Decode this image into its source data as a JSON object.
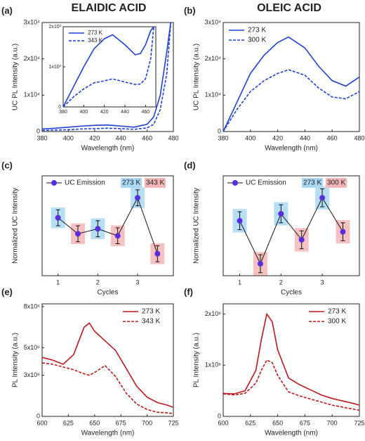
{
  "headers": [
    "ELAIDIC ACID",
    "OLEIC ACID"
  ],
  "chart_data": [
    {
      "type": "line",
      "panel": "(a)",
      "xlabel": "Wavelength (nm)",
      "ylabel": "UC PL Intensity (a.u.)",
      "xlim": [
        380,
        480
      ],
      "xticks": [
        380,
        400,
        420,
        440,
        460,
        480
      ],
      "ylim": [
        0,
        30000
      ],
      "yticks": [
        0,
        {
          "value": 10000,
          "label": "1x10⁴"
        },
        {
          "value": 20000,
          "label": "2x10⁴"
        },
        {
          "value": 30000,
          "label": "3x10⁴"
        }
      ],
      "x": [
        380,
        390,
        400,
        410,
        420,
        430,
        440,
        450,
        460,
        465,
        470,
        475,
        478
      ],
      "series": [
        {
          "name": "273 K",
          "color": "#1f3fd6",
          "dash": "solid",
          "values": [
            700,
            900,
            1200,
            1500,
            1700,
            1800,
            1500,
            1200,
            2000,
            4000,
            10000,
            22000,
            30000
          ]
        },
        {
          "name": "343 K",
          "color": "#1f3fd6",
          "dash": "dashed",
          "values": [
            300,
            400,
            500,
            700,
            800,
            900,
            800,
            600,
            1000,
            2000,
            6000,
            16000,
            30000
          ]
        }
      ],
      "inset": {
        "type": "line",
        "legend": "top-left",
        "xlim": [
          380,
          470
        ],
        "xticks": [
          380,
          400,
          420,
          440,
          460
        ],
        "ylim": [
          0,
          2000
        ],
        "yticks": [
          0,
          {
            "value": 1000,
            "label": "1x10³"
          },
          {
            "value": 2000,
            "label": "2x10³"
          }
        ],
        "x": [
          380,
          390,
          400,
          410,
          420,
          428,
          440,
          450,
          455,
          460,
          465,
          468
        ],
        "series": [
          {
            "name": "273 K",
            "color": "#1f3fd6",
            "dash": "solid",
            "values": [
              0,
              500,
              1000,
              1450,
              1700,
              1800,
              1550,
              1300,
              1330,
              1550,
              1900,
              2000
            ]
          },
          {
            "name": "343 K",
            "color": "#1f3fd6",
            "dash": "dashed",
            "values": [
              0,
              250,
              450,
              600,
              650,
              700,
              620,
              560,
              570,
              700,
              1200,
              2000
            ]
          }
        ]
      }
    },
    {
      "type": "line",
      "panel": "(b)",
      "xlabel": "Wavelength (nm)",
      "ylabel": "UC PL Intensity (a.u.)",
      "legend": "top-left",
      "xlim": [
        380,
        480
      ],
      "xticks": [
        380,
        400,
        420,
        440,
        460,
        480
      ],
      "ylim": [
        0,
        30000
      ],
      "yticks": [
        0,
        {
          "value": 10000,
          "label": "1x10⁴"
        },
        {
          "value": 20000,
          "label": "2x10⁴"
        },
        {
          "value": 30000,
          "label": "3x10⁴"
        }
      ],
      "x": [
        380,
        390,
        400,
        410,
        420,
        428,
        440,
        450,
        460,
        470,
        480
      ],
      "series": [
        {
          "name": "273 K",
          "color": "#1f3fd6",
          "dash": "solid",
          "values": [
            0,
            8000,
            16000,
            21000,
            24500,
            26000,
            23000,
            18000,
            14000,
            12500,
            15000
          ]
        },
        {
          "name": "300 K",
          "color": "#1f3fd6",
          "dash": "dashed",
          "values": [
            0,
            6000,
            11000,
            14000,
            16000,
            17000,
            15500,
            12000,
            9500,
            9000,
            11000
          ]
        }
      ]
    },
    {
      "type": "errorline",
      "panel": "(c)",
      "xlabel": "Cycles",
      "ylabel": "Normalized UC Intensity",
      "xlim": [
        0.6,
        3.9
      ],
      "xticks": [
        1,
        2,
        3
      ],
      "ylim": [
        0,
        1
      ],
      "x": [
        1,
        1.5,
        2,
        2.5,
        3,
        3.5
      ],
      "series": [
        {
          "name": "UC Emission",
          "color": "#5a2ee0",
          "values": [
            0.58,
            0.42,
            0.47,
            0.4,
            0.78,
            0.22
          ],
          "errors": [
            0.08,
            0.08,
            0.08,
            0.08,
            0.08,
            0.08
          ]
        }
      ],
      "groups": [
        {
          "name": "273 K",
          "color": "#a9d8f2"
        },
        {
          "name": "343 K",
          "color": "#f4b6b6"
        }
      ],
      "point_group": [
        0,
        1,
        0,
        1,
        0,
        1
      ]
    },
    {
      "type": "errorline",
      "panel": "(d)",
      "xlabel": "Cycles",
      "ylabel": "Normalized UC Intensity",
      "xlim": [
        0.6,
        3.9
      ],
      "xticks": [
        1,
        2,
        3
      ],
      "ylim": [
        0,
        1
      ],
      "x": [
        1,
        1.5,
        2,
        2.5,
        3,
        3.5
      ],
      "series": [
        {
          "name": "UC Emission",
          "color": "#5a2ee0",
          "values": [
            0.55,
            0.12,
            0.62,
            0.36,
            0.78,
            0.44
          ],
          "errors": [
            0.09,
            0.09,
            0.09,
            0.09,
            0.09,
            0.09
          ]
        }
      ],
      "groups": [
        {
          "name": "273 K",
          "color": "#a9d8f2"
        },
        {
          "name": "300 K",
          "color": "#f4b6b6"
        }
      ],
      "point_group": [
        0,
        1,
        0,
        1,
        0,
        1
      ]
    },
    {
      "type": "line",
      "panel": "(e)",
      "xlabel": "Wavelength (nm)",
      "ylabel": "PL Intensity (a.u.)",
      "legend": "top-right",
      "xlim": [
        600,
        725
      ],
      "xticks": [
        600,
        625,
        650,
        675,
        700,
        725
      ],
      "ylim": [
        0,
        8200000
      ],
      "yticks": [
        0,
        {
          "value": 3000000,
          "label": "3x10⁶"
        },
        {
          "value": 5000000,
          "label": "5x10⁶"
        },
        {
          "value": 8000000,
          "label": "8x10⁶"
        }
      ],
      "x": [
        600,
        610,
        620,
        630,
        640,
        645,
        650,
        660,
        670,
        680,
        690,
        700,
        710,
        720,
        725
      ],
      "series": [
        {
          "name": "273 K",
          "color": "#c0171c",
          "dash": "solid",
          "values": [
            4300000,
            4100000,
            3800000,
            4500000,
            6500000,
            6800000,
            6200000,
            5500000,
            4800000,
            3500000,
            2200000,
            1400000,
            1000000,
            800000,
            650000
          ]
        },
        {
          "name": "343 K",
          "color": "#c0171c",
          "dash": "dashed",
          "values": [
            3900000,
            3800000,
            3600000,
            3400000,
            3100000,
            3000000,
            3200000,
            3700000,
            2900000,
            1700000,
            900000,
            500000,
            300000,
            250000,
            200000
          ]
        }
      ]
    },
    {
      "type": "line",
      "panel": "(f)",
      "xlabel": "Wavelength (nm)",
      "ylabel": "PL Intensity (a.u.)",
      "legend": "top-right",
      "xlim": [
        600,
        725
      ],
      "xticks": [
        600,
        625,
        650,
        675,
        700,
        725
      ],
      "ylim": [
        0,
        2200000
      ],
      "yticks": [
        0,
        {
          "value": 1000000,
          "label": "1x10⁶"
        },
        {
          "value": 2000000,
          "label": "2x10⁶"
        }
      ],
      "x": [
        600,
        610,
        620,
        630,
        635,
        640,
        645,
        650,
        660,
        670,
        680,
        690,
        700,
        710,
        720,
        725
      ],
      "series": [
        {
          "name": "273 K",
          "color": "#c0171c",
          "dash": "solid",
          "values": [
            450000,
            440000,
            500000,
            900000,
            1500000,
            2000000,
            1850000,
            1300000,
            750000,
            620000,
            520000,
            420000,
            350000,
            300000,
            250000,
            220000
          ]
        },
        {
          "name": "300 K",
          "color": "#c0171c",
          "dash": "dashed",
          "values": [
            440000,
            420000,
            450000,
            650000,
            900000,
            1100000,
            1050000,
            800000,
            480000,
            400000,
            340000,
            280000,
            220000,
            180000,
            140000,
            120000
          ]
        }
      ]
    }
  ]
}
